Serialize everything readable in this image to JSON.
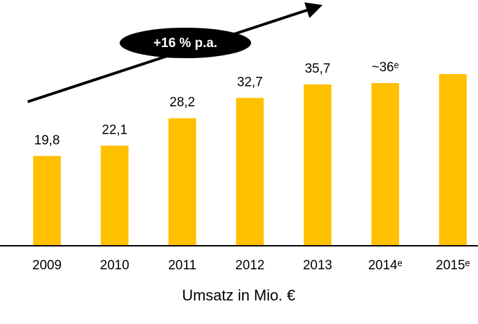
{
  "chart_data": {
    "type": "bar",
    "categories": [
      "2009",
      "2010",
      "2011",
      "2012",
      "2013",
      "2014ᵉ",
      "2015ᵉ"
    ],
    "values": [
      19.8,
      22.1,
      28.2,
      32.7,
      35.7,
      36,
      38
    ],
    "value_labels": [
      "19,8",
      "22,1",
      "28,2",
      "32,7",
      "35,7",
      "~36ᵉ",
      null
    ],
    "color": "#ffc000",
    "ylim": [
      0,
      50
    ],
    "annotation": "+16 % p.a.",
    "xlabel": "Umsatz in Mio. €"
  }
}
